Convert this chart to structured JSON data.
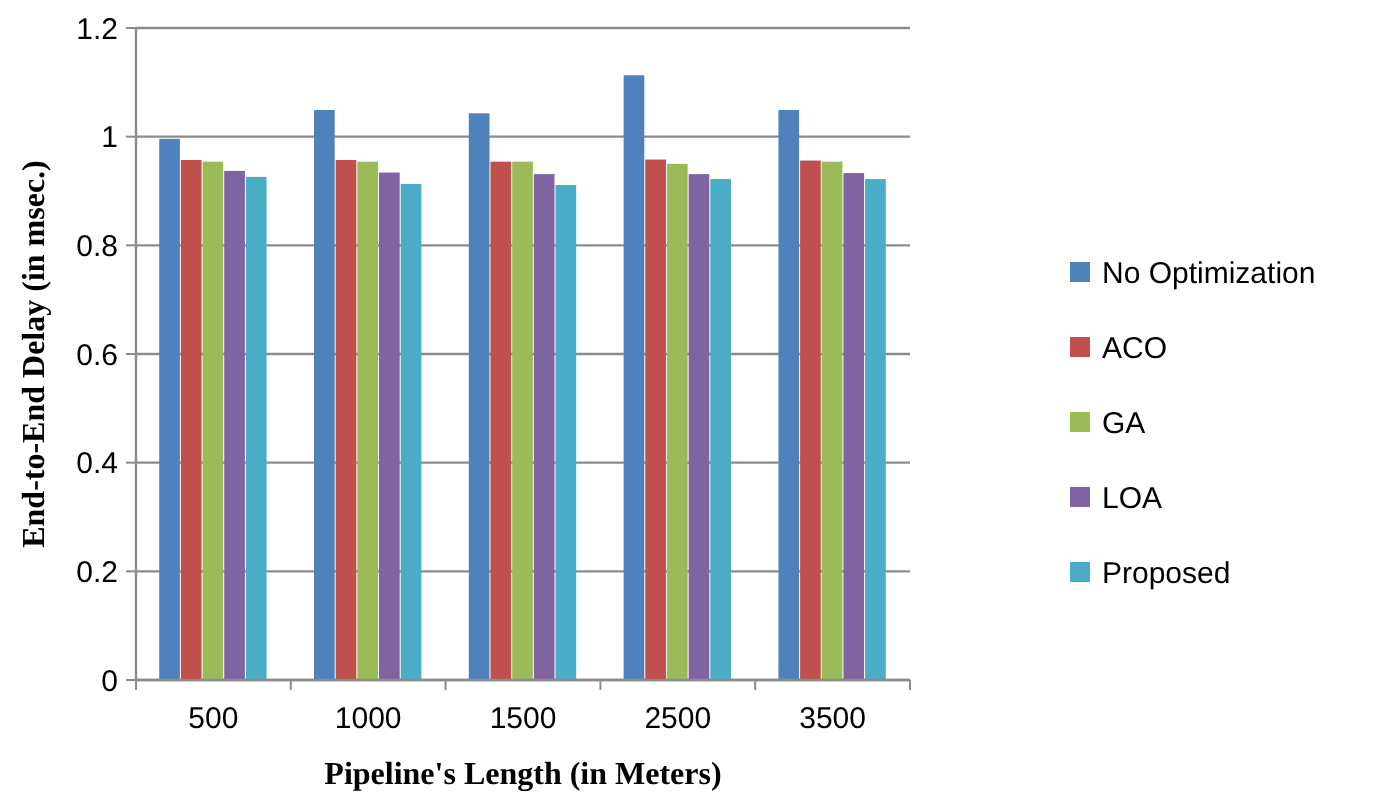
{
  "chart_data": {
    "type": "bar",
    "xlabel": "Pipeline's Length (in Meters)",
    "ylabel": "End-to-End Delay (in msec.)",
    "categories": [
      "500",
      "1000",
      "1500",
      "2500",
      "3500"
    ],
    "series": [
      {
        "name": "No Optimization",
        "color": "#4f81bd",
        "values": [
          0.996,
          1.049,
          1.043,
          1.113,
          1.049
        ]
      },
      {
        "name": "ACO",
        "color": "#c0504d",
        "values": [
          0.957,
          0.957,
          0.954,
          0.958,
          0.956
        ]
      },
      {
        "name": "GA",
        "color": "#9bbb59",
        "values": [
          0.954,
          0.954,
          0.954,
          0.95,
          0.954
        ]
      },
      {
        "name": "LOA",
        "color": "#8064a2",
        "values": [
          0.937,
          0.934,
          0.931,
          0.931,
          0.933
        ]
      },
      {
        "name": "Proposed",
        "color": "#4bacc6",
        "values": [
          0.926,
          0.913,
          0.911,
          0.922,
          0.922
        ]
      }
    ],
    "ylim": [
      0,
      1.2
    ],
    "yticks": [
      0,
      0.2,
      0.4,
      0.6,
      0.8,
      1,
      1.2
    ],
    "grid": "y",
    "legend": "right"
  }
}
